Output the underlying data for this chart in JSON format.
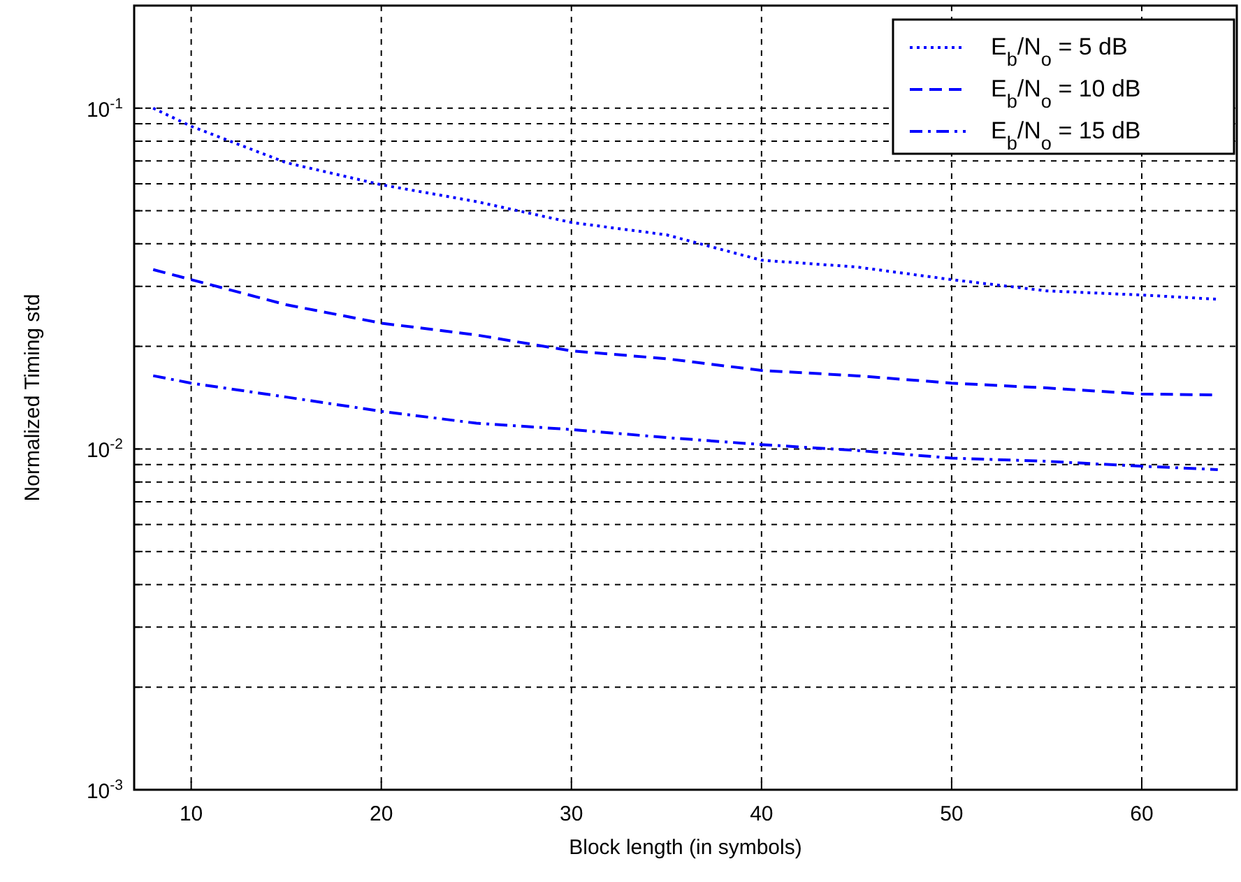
{
  "chart_data": {
    "type": "line",
    "xlabel": "Block length (in symbols)",
    "ylabel": "Normalized Timing std",
    "log": "y",
    "grid": true,
    "legend": "top right",
    "xlim": [
      7,
      65
    ],
    "xticks": [
      10,
      20,
      30,
      40,
      50,
      60
    ],
    "ylim": [
      0.001,
      0.2
    ],
    "yticks": [
      {
        "value": 0.001,
        "label": "10$^{-3}$"
      },
      {
        "value": 0.002,
        "label": null
      },
      {
        "value": 0.003,
        "label": null
      },
      {
        "value": 0.004,
        "label": null
      },
      {
        "value": 0.005,
        "label": null
      },
      {
        "value": 0.006,
        "label": null
      },
      {
        "value": 0.007,
        "label": null
      },
      {
        "value": 0.008,
        "label": null
      },
      {
        "value": 0.009,
        "label": null
      },
      {
        "value": 0.01,
        "label": "10$^{-2}$"
      },
      {
        "value": 0.02,
        "label": null
      },
      {
        "value": 0.03,
        "label": null
      },
      {
        "value": 0.04,
        "label": null
      },
      {
        "value": 0.05,
        "label": null
      },
      {
        "value": 0.06,
        "label": null
      },
      {
        "value": 0.07,
        "label": null
      },
      {
        "value": 0.08,
        "label": null
      },
      {
        "value": 0.09,
        "label": null
      },
      {
        "value": 0.1,
        "label": "10$^{-1}$"
      }
    ],
    "x": [
      8,
      10,
      15,
      20,
      25,
      30,
      35,
      40,
      45,
      50,
      55,
      60,
      64
    ],
    "series": [
      {
        "name": "E$_{b}$/N$_{o}$ = 5 dB",
        "color": "#0000ff",
        "line_style": "dotted",
        "values": [
          0.1,
          0.0885,
          0.0692,
          0.0596,
          0.0532,
          0.0462,
          0.0425,
          0.0358,
          0.0342,
          0.0314,
          0.0291,
          0.0283,
          0.0275
        ]
      },
      {
        "name": "E$_{b}$/N$_{o}$ = 10 dB",
        "color": "#0000ff",
        "line_style": "dashed",
        "values": [
          0.0336,
          0.0314,
          0.0265,
          0.0234,
          0.0216,
          0.0194,
          0.0184,
          0.017,
          0.0164,
          0.0156,
          0.0151,
          0.0145,
          0.0144
        ]
      },
      {
        "name": "E$_{b}$/N$_{o}$ = 15 dB",
        "color": "#0000ff",
        "line_style": "dashdot",
        "values": [
          0.0164,
          0.0156,
          0.0142,
          0.0129,
          0.0119,
          0.0114,
          0.0108,
          0.0103,
          0.0099,
          0.0094,
          0.0092,
          0.0089,
          0.0087
        ]
      }
    ]
  }
}
